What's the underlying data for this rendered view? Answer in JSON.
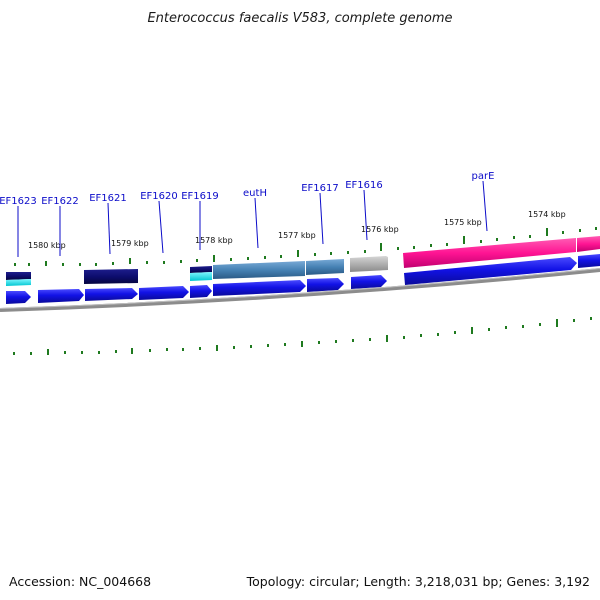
{
  "title": "Enterococcus faecalis V583, complete genome",
  "footer": {
    "accession": "Accession: NC_004668",
    "topology": "Topology: circular; Length: 3,218,031 bp; Genes: 3,192"
  },
  "colors": {
    "forward_cds": "#1212e6",
    "gene_dark": "#0d0d6e",
    "gene_steel": "#4682b4",
    "gene_gray": "#b0b0b0",
    "gene_pink": "#ff1493",
    "gene_cyan": "#00e5ee",
    "tick": "#1f7a1f",
    "backbone": "#8c8c8c",
    "label": "#0b0bc9"
  },
  "tick_labels": [
    "1580 kbp",
    "1579 kbp",
    "1578 kbp",
    "1577 kbp",
    "1576 kbp",
    "1575 kbp",
    "1574 kbp"
  ],
  "gene_labels": [
    "EF1623",
    "EF1622",
    "EF1621",
    "EF1620",
    "EF1619",
    "eutH",
    "EF1617",
    "EF1616",
    "parE"
  ]
}
